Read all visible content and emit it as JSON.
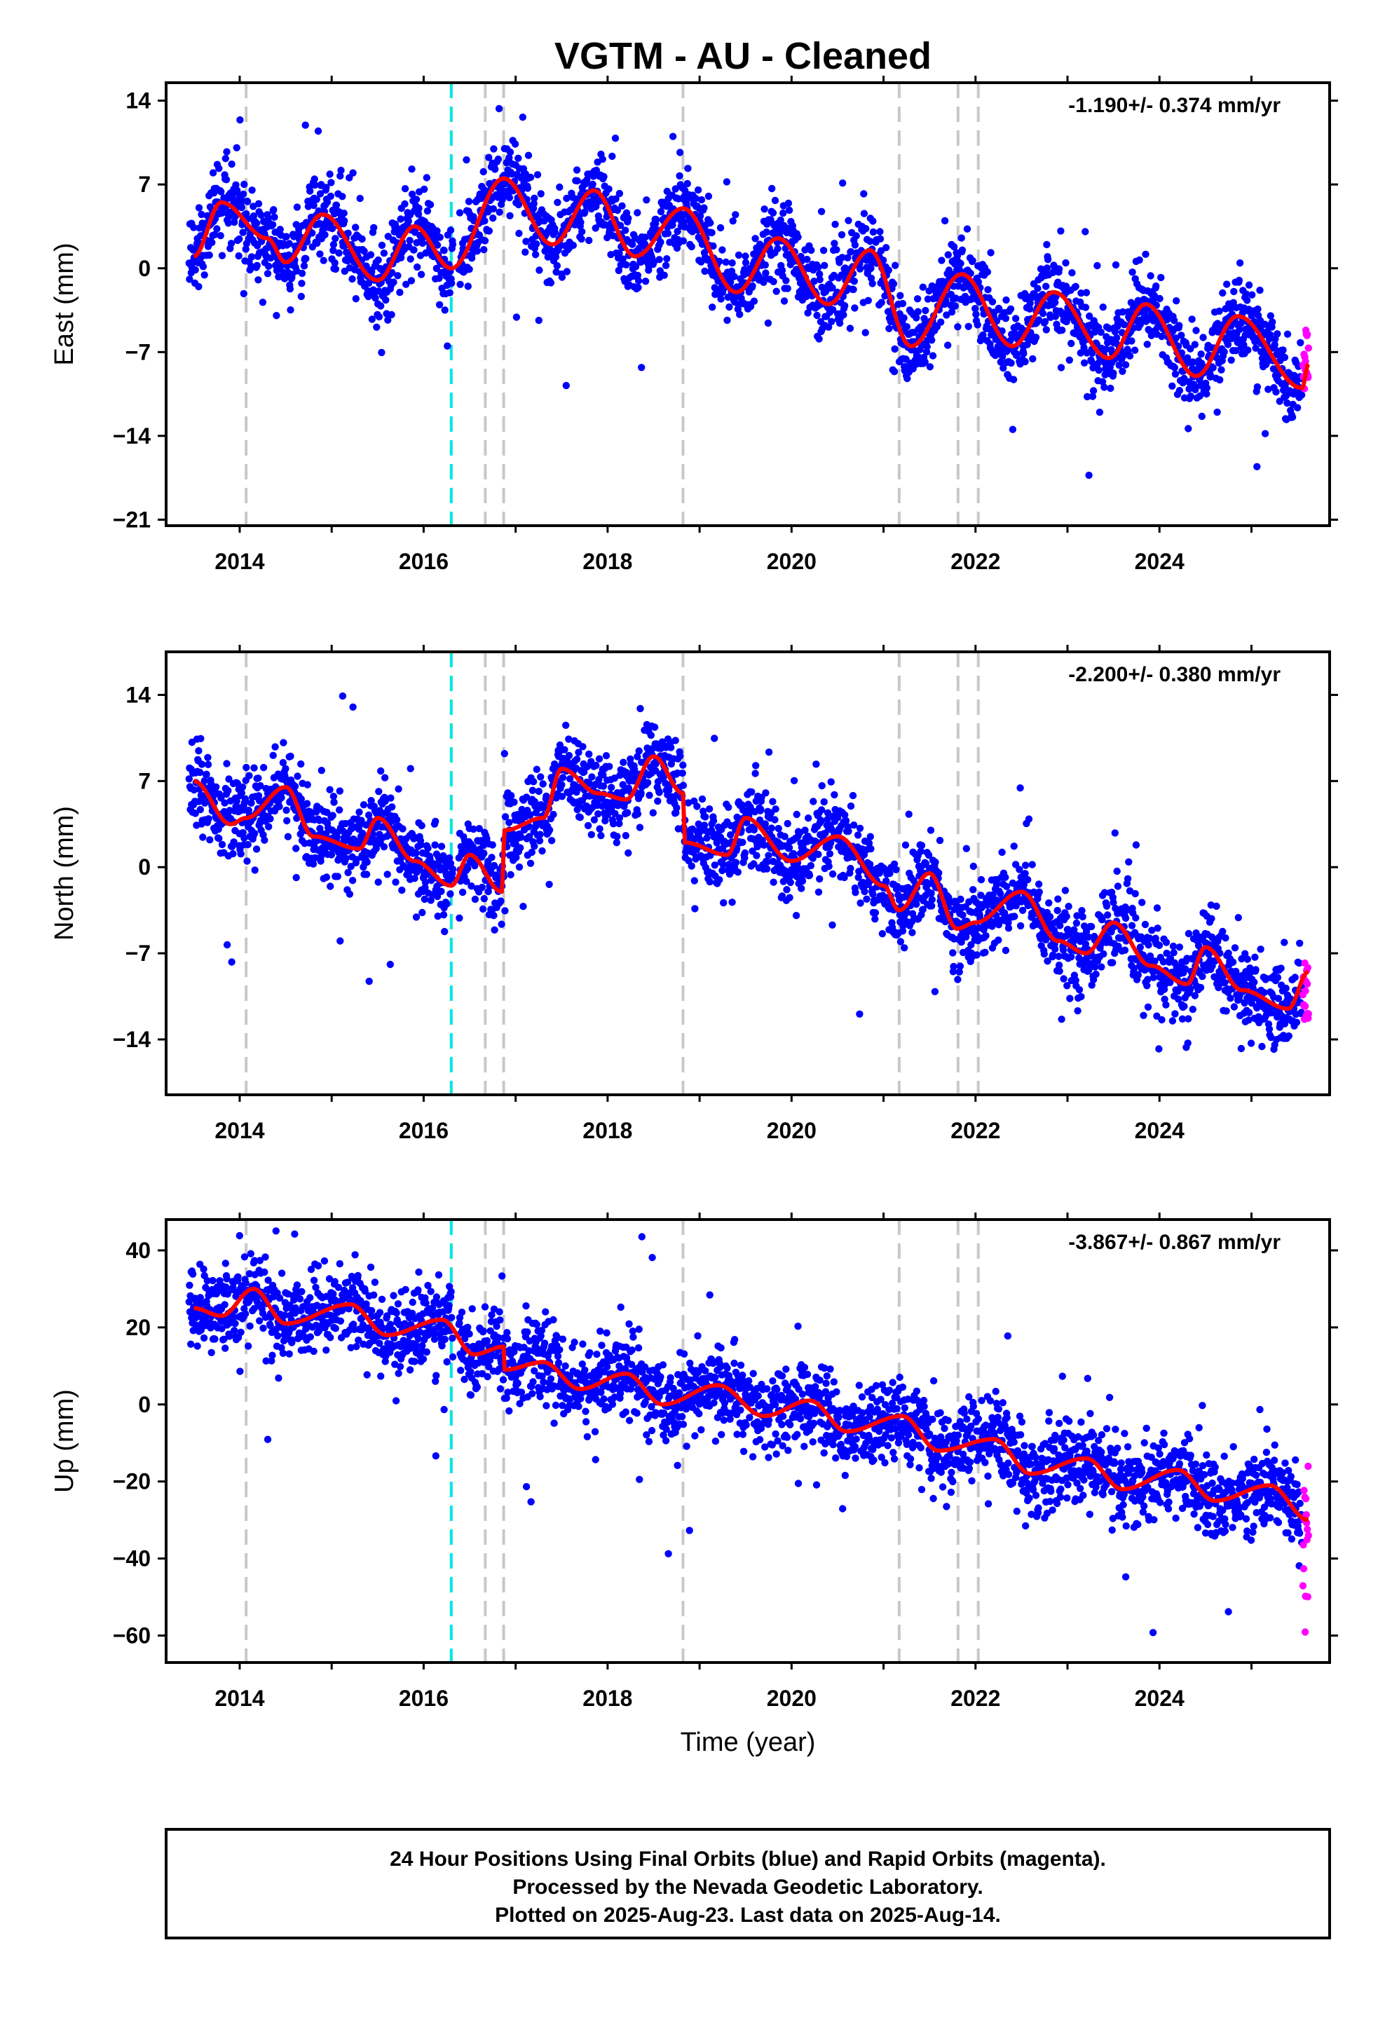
{
  "title": "VGTM  - AU - Cleaned",
  "colors": {
    "final_orbits": "#0000ff",
    "rapid_orbits": "#ff00ff",
    "model": "#ff0000",
    "event_gray": "#c8c8c8",
    "event_cyan": "#00e5e5"
  },
  "footer": {
    "line1": "24 Hour Positions Using Final Orbits (blue) and Rapid Orbits (magenta).",
    "line2": "Processed by the Nevada Geodetic Laboratory.",
    "line3": "Plotted on 2025-Aug-23. Last data on 2025-Aug-14."
  },
  "chart_data": [
    {
      "type": "scatter",
      "component": "East",
      "ylabel": "East (mm)",
      "xlabel": "",
      "rate": "-1.190+/- 0.374 mm/yr",
      "xlim": [
        2013.2,
        2025.85
      ],
      "ylim": [
        -21.5,
        15.5
      ],
      "xticks": [
        "2014",
        "2016",
        "2018",
        "2020",
        "2022",
        "2024"
      ],
      "yticks": [
        "14",
        "7",
        "0",
        "-7",
        "-14",
        "-21"
      ],
      "events": {
        "gray": [
          2014.07,
          2016.67,
          2016.87,
          2018.82,
          2021.17,
          2021.81,
          2022.03
        ],
        "cyan": [
          2016.3
        ]
      },
      "rapid_orbits_last_data": "2025-Aug-14",
      "model_anchor_points": [
        {
          "t": 2013.5,
          "v": 1
        },
        {
          "t": 2013.8,
          "v": 5.5
        },
        {
          "t": 2014.3,
          "v": 2.5
        },
        {
          "t": 2014.5,
          "v": 0.5
        },
        {
          "t": 2014.9,
          "v": 4.5
        },
        {
          "t": 2015.5,
          "v": -1
        },
        {
          "t": 2015.9,
          "v": 3.5
        },
        {
          "t": 2016.3,
          "v": 0
        },
        {
          "t": 2016.87,
          "v": 7.5
        },
        {
          "t": 2017.4,
          "v": 2
        },
        {
          "t": 2017.85,
          "v": 6.5
        },
        {
          "t": 2018.3,
          "v": 1
        },
        {
          "t": 2018.82,
          "v": 5
        },
        {
          "t": 2019.4,
          "v": -2
        },
        {
          "t": 2019.85,
          "v": 2.5
        },
        {
          "t": 2020.4,
          "v": -3
        },
        {
          "t": 2020.85,
          "v": 1.5
        },
        {
          "t": 2021.3,
          "v": -6.5
        },
        {
          "t": 2021.85,
          "v": -0.5
        },
        {
          "t": 2022.4,
          "v": -6.5
        },
        {
          "t": 2022.85,
          "v": -2
        },
        {
          "t": 2023.45,
          "v": -7.5
        },
        {
          "t": 2023.85,
          "v": -3
        },
        {
          "t": 2024.4,
          "v": -9
        },
        {
          "t": 2024.85,
          "v": -4
        },
        {
          "t": 2025.55,
          "v": -10
        },
        {
          "t": 2025.62,
          "v": -8
        }
      ],
      "rapid_points_range": [
        -11,
        -5
      ]
    },
    {
      "type": "scatter",
      "component": "North",
      "ylabel": "North (mm)",
      "xlabel": "",
      "rate": "-2.200+/- 0.380 mm/yr",
      "xlim": [
        2013.2,
        2025.85
      ],
      "ylim": [
        -18.5,
        17.5
      ],
      "xticks": [
        "2014",
        "2016",
        "2018",
        "2020",
        "2022",
        "2024"
      ],
      "yticks": [
        "14",
        "7",
        "0",
        "-7",
        "-14"
      ],
      "events": {
        "gray": [
          2014.07,
          2016.67,
          2016.87,
          2018.82,
          2021.17,
          2021.81,
          2022.03
        ],
        "cyan": [
          2016.3
        ]
      },
      "rapid_orbits_last_data": "2025-Aug-14",
      "model_anchor_points": [
        {
          "t": 2013.5,
          "v": 7
        },
        {
          "t": 2013.9,
          "v": 3.5
        },
        {
          "t": 2014.07,
          "v": 4
        },
        {
          "t": 2014.5,
          "v": 6.5
        },
        {
          "t": 2014.8,
          "v": 2.5
        },
        {
          "t": 2015.3,
          "v": 1.5
        },
        {
          "t": 2015.5,
          "v": 4
        },
        {
          "t": 2015.9,
          "v": 0.5
        },
        {
          "t": 2016.3,
          "v": -1.5
        },
        {
          "t": 2016.5,
          "v": 1
        },
        {
          "t": 2016.85,
          "v": -2
        },
        {
          "t": 2016.88,
          "v": 3
        },
        {
          "t": 2017.3,
          "v": 4
        },
        {
          "t": 2017.5,
          "v": 8
        },
        {
          "t": 2017.9,
          "v": 6
        },
        {
          "t": 2018.2,
          "v": 5.5
        },
        {
          "t": 2018.5,
          "v": 9
        },
        {
          "t": 2018.82,
          "v": 6
        },
        {
          "t": 2018.84,
          "v": 2
        },
        {
          "t": 2019.3,
          "v": 1
        },
        {
          "t": 2019.5,
          "v": 4
        },
        {
          "t": 2020.0,
          "v": 0.5
        },
        {
          "t": 2020.5,
          "v": 2.5
        },
        {
          "t": 2021.0,
          "v": -1.5
        },
        {
          "t": 2021.17,
          "v": -3.5
        },
        {
          "t": 2021.5,
          "v": -0.5
        },
        {
          "t": 2021.8,
          "v": -5
        },
        {
          "t": 2022.0,
          "v": -4.5
        },
        {
          "t": 2022.5,
          "v": -2
        },
        {
          "t": 2022.9,
          "v": -6
        },
        {
          "t": 2023.2,
          "v": -7
        },
        {
          "t": 2023.5,
          "v": -4.5
        },
        {
          "t": 2023.9,
          "v": -8
        },
        {
          "t": 2024.3,
          "v": -9.5
        },
        {
          "t": 2024.5,
          "v": -6.5
        },
        {
          "t": 2024.9,
          "v": -10
        },
        {
          "t": 2025.4,
          "v": -11.5
        },
        {
          "t": 2025.62,
          "v": -8.5
        }
      ],
      "rapid_points_range": [
        -12.5,
        -7
      ]
    },
    {
      "type": "scatter",
      "component": "Up",
      "ylabel": "Up (mm)",
      "xlabel": "Time (year)",
      "rate": "-3.867+/- 0.867 mm/yr",
      "xlim": [
        2013.2,
        2025.85
      ],
      "ylim": [
        -67,
        48
      ],
      "xticks": [
        "2014",
        "2016",
        "2018",
        "2020",
        "2022",
        "2024"
      ],
      "yticks": [
        "40",
        "20",
        "0",
        "-20",
        "-40",
        "-60"
      ],
      "events": {
        "gray": [
          2014.07,
          2016.67,
          2016.87,
          2018.82,
          2021.17,
          2021.81,
          2022.03
        ],
        "cyan": [
          2016.3
        ]
      },
      "rapid_orbits_last_data": "2025-Aug-14",
      "model_anchor_points": [
        {
          "t": 2013.5,
          "v": 25
        },
        {
          "t": 2013.8,
          "v": 23
        },
        {
          "t": 2014.15,
          "v": 30
        },
        {
          "t": 2014.5,
          "v": 21
        },
        {
          "t": 2015.2,
          "v": 26
        },
        {
          "t": 2015.6,
          "v": 18
        },
        {
          "t": 2016.2,
          "v": 22
        },
        {
          "t": 2016.55,
          "v": 13
        },
        {
          "t": 2016.87,
          "v": 15
        },
        {
          "t": 2016.88,
          "v": 9
        },
        {
          "t": 2017.3,
          "v": 11
        },
        {
          "t": 2017.7,
          "v": 4
        },
        {
          "t": 2018.2,
          "v": 8
        },
        {
          "t": 2018.6,
          "v": 0
        },
        {
          "t": 2019.2,
          "v": 5
        },
        {
          "t": 2019.7,
          "v": -3
        },
        {
          "t": 2020.2,
          "v": 1
        },
        {
          "t": 2020.6,
          "v": -7
        },
        {
          "t": 2021.2,
          "v": -3
        },
        {
          "t": 2021.6,
          "v": -12
        },
        {
          "t": 2022.2,
          "v": -9
        },
        {
          "t": 2022.6,
          "v": -18
        },
        {
          "t": 2023.2,
          "v": -14
        },
        {
          "t": 2023.6,
          "v": -22
        },
        {
          "t": 2024.2,
          "v": -17
        },
        {
          "t": 2024.6,
          "v": -25
        },
        {
          "t": 2025.2,
          "v": -21
        },
        {
          "t": 2025.62,
          "v": -30
        }
      ],
      "rapid_points_range": [
        -61,
        -14
      ]
    }
  ]
}
